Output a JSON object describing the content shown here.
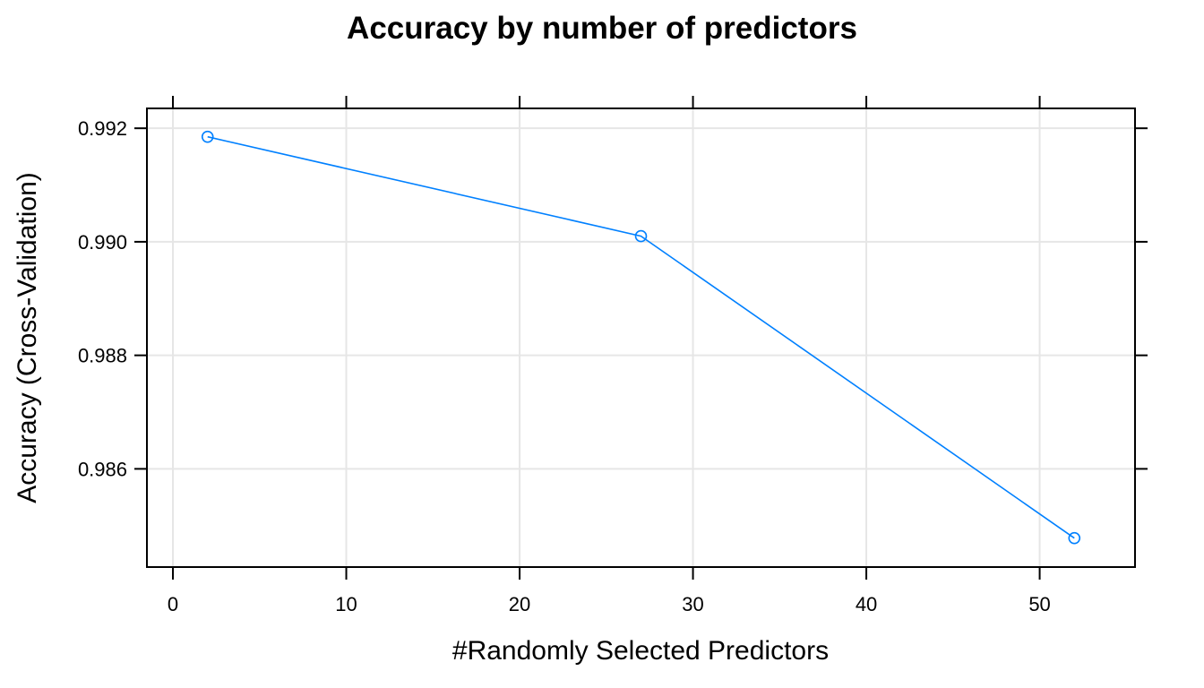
{
  "chart_data": {
    "type": "line",
    "title": "Accuracy by number of predictors",
    "xlabel": "#Randomly Selected Predictors",
    "ylabel": "Accuracy (Cross-Validation)",
    "x_ticks": [
      0,
      10,
      20,
      30,
      40,
      50
    ],
    "x_tick_labels": [
      "0",
      "10",
      "20",
      "30",
      "40",
      "50"
    ],
    "y_ticks": [
      0.986,
      0.988,
      0.99,
      0.992
    ],
    "y_tick_labels": [
      "0.986",
      "0.988",
      "0.990",
      "0.992"
    ],
    "xlim": [
      -1.5,
      55.5
    ],
    "ylim": [
      0.98427,
      0.99235
    ],
    "grid": true,
    "series": [
      {
        "x": [
          2,
          27,
          52
        ],
        "values": [
          0.99185,
          0.9901,
          0.98478
        ],
        "color": "#0080ff"
      }
    ]
  }
}
